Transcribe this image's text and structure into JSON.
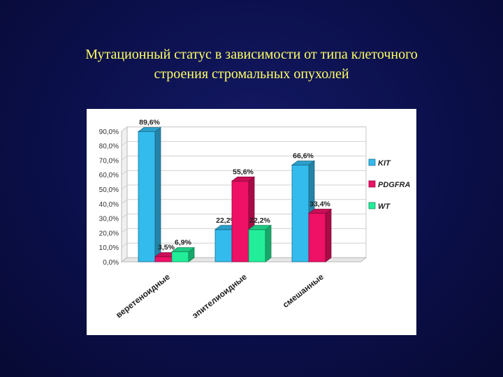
{
  "slide": {
    "title_line1": "Мутационный статус в зависимости от типа клеточного",
    "title_line2": "строения стромальных опухолей"
  },
  "chart_data": {
    "type": "bar",
    "categories": [
      "веретеноидные",
      "эпителиоидные",
      "смешанные"
    ],
    "series": [
      {
        "name": "KIT",
        "values": [
          89.6,
          22.2,
          66.6
        ],
        "labels": [
          "89,6%",
          "22,2%",
          "66,6%"
        ],
        "color": "#33bbee"
      },
      {
        "name": "PDGFRA",
        "values": [
          3.5,
          55.6,
          33.4
        ],
        "labels": [
          "3,5%",
          "55,6%",
          "33,4%"
        ],
        "color": "#ee1166"
      },
      {
        "name": "WT",
        "values": [
          6.9,
          22.2,
          null
        ],
        "labels": [
          "6,9%",
          "22,2%",
          ""
        ],
        "color": "#22ee99"
      }
    ],
    "yticks": [
      "0,0%",
      "10,0%",
      "20,0%",
      "30,0%",
      "40,0%",
      "50,0%",
      "60,0%",
      "70,0%",
      "80,0%",
      "90,0%"
    ],
    "ylim": [
      0,
      90
    ],
    "grid": true,
    "legend_position": "right"
  }
}
